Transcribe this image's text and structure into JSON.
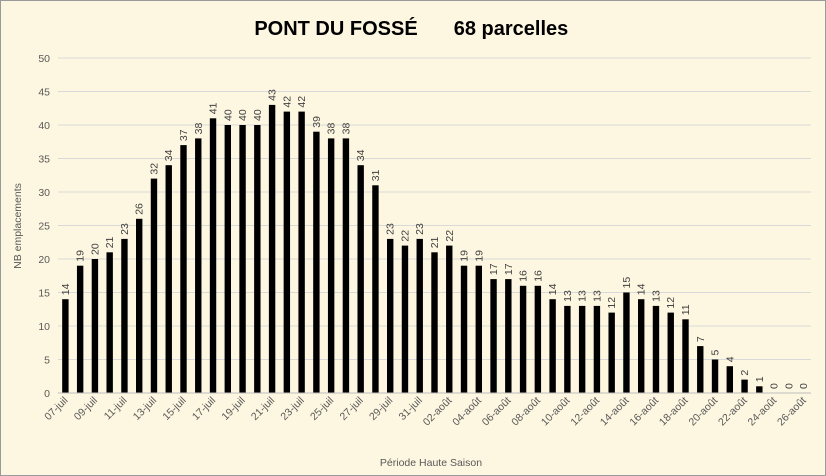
{
  "chart_data": {
    "type": "bar",
    "title": "PONT DU FOSSÉ",
    "subtitle": "68 parcelles",
    "xlabel": "Période Haute Saison",
    "ylabel": "NB emplacements",
    "ylim": [
      0,
      50
    ],
    "yticks": [
      0,
      5,
      10,
      15,
      20,
      25,
      30,
      35,
      40,
      45,
      50
    ],
    "grid": true,
    "legend": "none",
    "bar_color": "#000000",
    "categories": [
      "07-juil",
      "08-juil",
      "09-juil",
      "10-juil",
      "11-juil",
      "12-juil",
      "13-juil",
      "14-juil",
      "15-juil",
      "16-juil",
      "17-juil",
      "18-juil",
      "19-juil",
      "20-juil",
      "21-juil",
      "22-juil",
      "23-juil",
      "24-juil",
      "25-juil",
      "26-juil",
      "27-juil",
      "28-juil",
      "29-juil",
      "30-juil",
      "31-juil",
      "01-août",
      "02-août",
      "03-août",
      "04-août",
      "05-août",
      "06-août",
      "07-août",
      "08-août",
      "09-août",
      "10-août",
      "11-août",
      "12-août",
      "13-août",
      "14-août",
      "15-août",
      "16-août",
      "17-août",
      "18-août",
      "19-août",
      "20-août",
      "21-août",
      "22-août",
      "23-août",
      "24-août",
      "25-août",
      "26-août"
    ],
    "tick_labels": [
      "07-juil",
      "",
      "09-juil",
      "",
      "11-juil",
      "",
      "13-juil",
      "",
      "15-juil",
      "",
      "17-juil",
      "",
      "19-juil",
      "",
      "21-juil",
      "",
      "23-juil",
      "",
      "25-juil",
      "",
      "27-juil",
      "",
      "29-juil",
      "",
      "31-juil",
      "",
      "02-août",
      "",
      "04-août",
      "",
      "06-août",
      "",
      "08-août",
      "",
      "10-août",
      "",
      "12-août",
      "",
      "14-août",
      "",
      "16-août",
      "",
      "18-août",
      "",
      "20-août",
      "",
      "22-août",
      "",
      "24-août",
      "",
      "26-août"
    ],
    "values": [
      14,
      19,
      20,
      21,
      23,
      26,
      32,
      34,
      37,
      38,
      41,
      40,
      40,
      40,
      43,
      42,
      42,
      39,
      38,
      38,
      34,
      31,
      23,
      22,
      23,
      21,
      22,
      19,
      19,
      17,
      17,
      16,
      16,
      14,
      13,
      13,
      13,
      12,
      15,
      14,
      13,
      12,
      11,
      7,
      5,
      4,
      2,
      1,
      0,
      0,
      0
    ]
  }
}
